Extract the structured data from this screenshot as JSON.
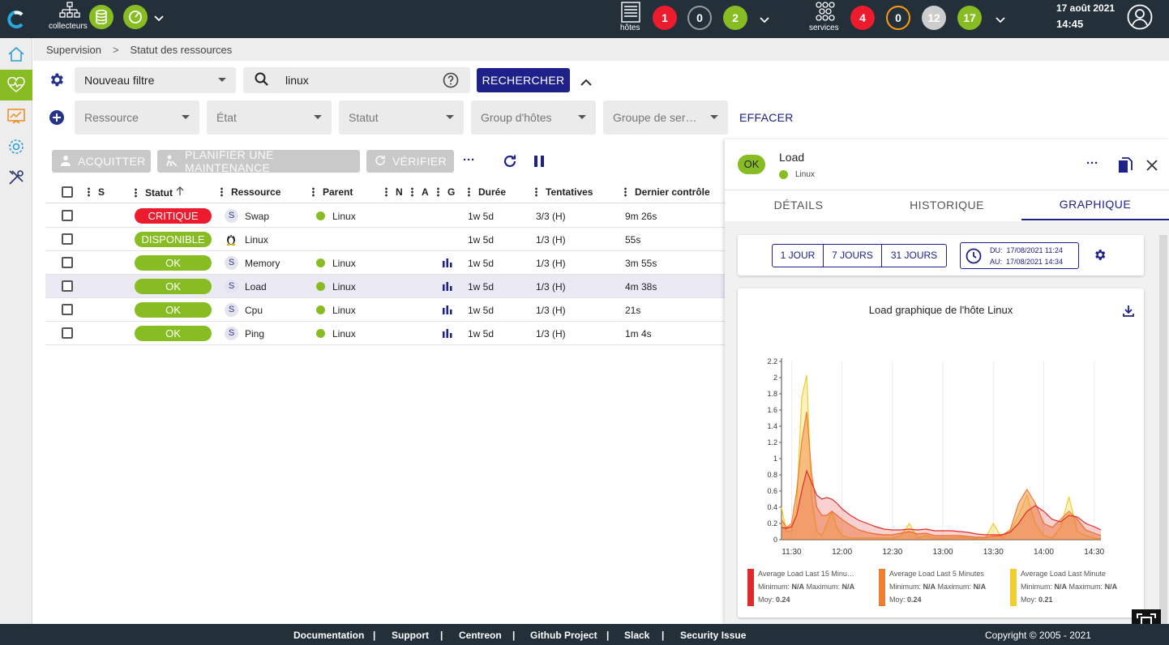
{
  "topbar": {
    "collectors_label": "collecteurs",
    "hosts_label": "hôtes",
    "services_label": "services",
    "hosts_counts": {
      "down": "1",
      "unreachable": "0",
      "up": "2"
    },
    "services_counts": {
      "critical": "4",
      "warning": "0",
      "unknown": "12",
      "ok": "17"
    },
    "date": "17 août 2021",
    "time": "14:45"
  },
  "breadcrumb": {
    "item1": "Supervision",
    "separator": ">",
    "item2": "Statut des ressources"
  },
  "filters": {
    "saved_filter": "Nouveau filtre",
    "search_value": "linux",
    "search_button": "RECHERCHER",
    "resource": "Ressource",
    "state": "État",
    "status": "Statut",
    "host_group": "Group d'hôtes",
    "service_group": "Groupe de ser…",
    "clear": "EFFACER"
  },
  "toolbar": {
    "acknowledge": "ACQUITTER",
    "downtime": "PLANIFIER UNE MAINTENANCE",
    "check": "VÉRIFIER",
    "more": "···"
  },
  "table": {
    "headers": {
      "s": "S",
      "status": "Statut",
      "resource": "Ressource",
      "parent": "Parent",
      "n": "N",
      "a": "A",
      "g": "G",
      "duration": "Durée",
      "tries": "Tentatives",
      "last_check": "Dernier contrôle"
    },
    "rows": [
      {
        "status": "CRITIQUE",
        "status_color": "#ed1b2e",
        "type": "S",
        "resource": "Swap",
        "parent": "Linux",
        "graph": false,
        "duration": "1w 5d",
        "tries": "3/3 (H)",
        "last_check": "9m 26s"
      },
      {
        "status": "DISPONIBLE",
        "status_color": "#87bd23",
        "type": "linux",
        "resource": "Linux",
        "parent": "",
        "graph": false,
        "duration": "1w 5d",
        "tries": "1/3 (H)",
        "last_check": "55s"
      },
      {
        "status": "OK",
        "status_color": "#87bd23",
        "type": "S",
        "resource": "Memory",
        "parent": "Linux",
        "graph": true,
        "duration": "1w 5d",
        "tries": "1/3 (H)",
        "last_check": "3m 55s"
      },
      {
        "status": "OK",
        "status_color": "#87bd23",
        "type": "S",
        "resource": "Load",
        "parent": "Linux",
        "graph": true,
        "duration": "1w 5d",
        "tries": "1/3 (H)",
        "last_check": "4m 38s"
      },
      {
        "status": "OK",
        "status_color": "#87bd23",
        "type": "S",
        "resource": "Cpu",
        "parent": "Linux",
        "graph": true,
        "duration": "1w 5d",
        "tries": "1/3 (H)",
        "last_check": "21s"
      },
      {
        "status": "OK",
        "status_color": "#87bd23",
        "type": "S",
        "resource": "Ping",
        "parent": "Linux",
        "graph": true,
        "duration": "1w 5d",
        "tries": "1/3 (H)",
        "last_check": "1m 4s"
      }
    ]
  },
  "panel": {
    "status": "OK",
    "title": "Load",
    "parent": "Linux",
    "tabs": [
      "DÉTAILS",
      "HISTORIQUE",
      "GRAPHIQUE"
    ],
    "periods": [
      "1 JOUR",
      "7 JOURS",
      "31 JOURS"
    ],
    "from": "DU:  17/08/2021 11:24",
    "to": "AU:  17/08/2021 14:34",
    "graph_title": "Load graphique de l'hôte Linux",
    "legend": [
      {
        "name": "Average Load Last 15 Minu…",
        "color": "#e02c28",
        "min_label": "Minimum:",
        "min": "N/A",
        "max_label": "Maximum:",
        "max": "N/A",
        "avg_label": "Moy:",
        "avg": "0.24"
      },
      {
        "name": "Average Load Last 5 Minutes",
        "color": "#ef7e30",
        "min_label": "Minimum:",
        "min": "N/A",
        "max_label": "Maximum:",
        "max": "N/A",
        "avg_label": "Moy:",
        "avg": "0.24"
      },
      {
        "name": "Average Load Last Minute",
        "color": "#f2cd2f",
        "min_label": "Minimum:",
        "min": "N/A",
        "max_label": "Maximum:",
        "max": "N/A",
        "avg_label": "Moy:",
        "avg": "0.21"
      }
    ]
  },
  "chart_data": {
    "type": "area",
    "title": "Load graphique de l'hôte Linux",
    "xlabel": "",
    "ylabel": "",
    "x_ticks": [
      "11:30",
      "12:00",
      "12:30",
      "13:00",
      "13:30",
      "14:00",
      "14:30"
    ],
    "y_ticks": [
      "0",
      "0.2",
      "0.4",
      "0.6",
      "0.8",
      "1",
      "1.2",
      "1.4",
      "1.6",
      "1.8",
      "2",
      "2.2"
    ],
    "ylim": [
      0,
      2.2
    ],
    "x_minutes_from_11_30": [
      -6,
      -3,
      0,
      3,
      6,
      9,
      12,
      15,
      18,
      21,
      24,
      27,
      30,
      35,
      40,
      45,
      50,
      55,
      60,
      65,
      70,
      75,
      80,
      85,
      90,
      95,
      100,
      105,
      110,
      115,
      120,
      125,
      130,
      135,
      140,
      145,
      150,
      155,
      160,
      165,
      170,
      175,
      180,
      184
    ],
    "series": [
      {
        "name": "Average Load Last 15 Minutes",
        "color": "#e02c28",
        "values": [
          0.15,
          0.14,
          0.16,
          0.3,
          0.6,
          0.85,
          0.7,
          0.55,
          0.5,
          0.52,
          0.5,
          0.45,
          0.38,
          0.3,
          0.24,
          0.2,
          0.16,
          0.13,
          0.12,
          0.12,
          0.13,
          0.12,
          0.13,
          0.11,
          0.11,
          0.11,
          0.1,
          0.09,
          0.07,
          0.06,
          0.06,
          0.06,
          0.09,
          0.2,
          0.35,
          0.42,
          0.35,
          0.25,
          0.22,
          0.3,
          0.28,
          0.2,
          0.16,
          0.12
        ]
      },
      {
        "name": "Average Load Last 5 Minutes",
        "color": "#ef7e30",
        "values": [
          0.25,
          0.15,
          0.2,
          0.6,
          1.2,
          1.58,
          0.8,
          0.4,
          0.3,
          0.3,
          0.35,
          0.3,
          0.25,
          0.18,
          0.12,
          0.09,
          0.07,
          0.06,
          0.06,
          0.08,
          0.1,
          0.07,
          0.08,
          0.05,
          0.05,
          0.05,
          0.05,
          0.04,
          0.03,
          0.03,
          0.04,
          0.05,
          0.12,
          0.45,
          0.62,
          0.45,
          0.2,
          0.15,
          0.25,
          0.35,
          0.25,
          0.12,
          0.08,
          0.05
        ]
      },
      {
        "name": "Average Load Last Minute",
        "color": "#f2cd2f",
        "values": [
          0.4,
          0.1,
          0.1,
          0.4,
          1.75,
          2.03,
          0.5,
          0.1,
          0.05,
          0.2,
          0.35,
          0.15,
          0.05,
          0.02,
          0.02,
          0.02,
          0.02,
          0.02,
          0.02,
          0.05,
          0.2,
          0.02,
          0.05,
          0.02,
          0.02,
          0.02,
          0.03,
          0.02,
          0.01,
          0.01,
          0.2,
          0.02,
          0.1,
          0.3,
          0.55,
          0.2,
          0.05,
          0.02,
          0.15,
          0.53,
          0.1,
          0.05,
          0.02,
          0.01
        ]
      }
    ]
  }
}
